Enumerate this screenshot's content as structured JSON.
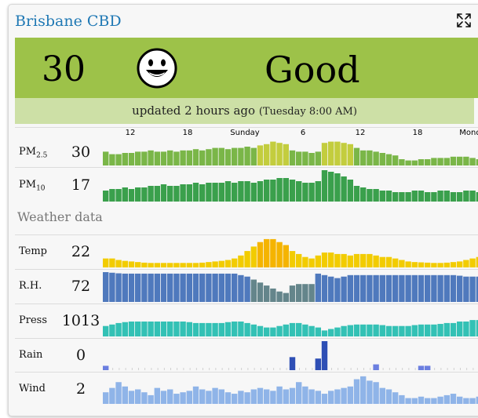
{
  "station": {
    "name": "Brisbane CBD"
  },
  "aqi": {
    "value": "30",
    "label": "Good",
    "updated_text": "updated 2 hours ago",
    "updated_detail": "(Tuesday 8:00 AM)",
    "banner_color": "#9dc249",
    "updated_bg": "#cde0a6"
  },
  "timeline": {
    "ticks": [
      "12",
      "18",
      "Sunday",
      "6",
      "12",
      "18",
      "Monday"
    ]
  },
  "section_label": "Weather data",
  "metrics": [
    {
      "key": "pm25",
      "label_main": "PM",
      "label_sub": "2.5",
      "value": "30",
      "color": "#7ab648",
      "levels": [
        0.55,
        0.45,
        0.45,
        0.5,
        0.5,
        0.55,
        0.55,
        0.6,
        0.55,
        0.55,
        0.6,
        0.55,
        0.6,
        0.6,
        0.65,
        0.6,
        0.65,
        0.7,
        0.7,
        0.65,
        0.7,
        0.7,
        0.75,
        0.7,
        0.8,
        0.85,
        0.95,
        0.9,
        0.85,
        0.6,
        0.55,
        0.55,
        0.5,
        0.55,
        0.9,
        0.95,
        0.95,
        0.9,
        0.85,
        0.7,
        0.6,
        0.6,
        0.55,
        0.5,
        0.45,
        0.4,
        0.25,
        0.2,
        0.2,
        0.25,
        0.25,
        0.3,
        0.3,
        0.3,
        0.35,
        0.35,
        0.35,
        0.3,
        0.25,
        0.2,
        0.25,
        0.3
      ]
    },
    {
      "key": "pm10",
      "label_main": "PM",
      "label_sub": "10",
      "value": "17",
      "color": "#3aa04c",
      "levels": [
        0.35,
        0.4,
        0.4,
        0.45,
        0.4,
        0.45,
        0.45,
        0.5,
        0.5,
        0.55,
        0.5,
        0.5,
        0.55,
        0.55,
        0.6,
        0.55,
        0.6,
        0.6,
        0.6,
        0.65,
        0.6,
        0.65,
        0.65,
        0.6,
        0.65,
        0.7,
        0.7,
        0.75,
        0.75,
        0.7,
        0.65,
        0.6,
        0.6,
        0.65,
        1.0,
        0.95,
        0.9,
        0.8,
        0.7,
        0.5,
        0.45,
        0.4,
        0.4,
        0.35,
        0.35,
        0.3,
        0.3,
        0.3,
        0.35,
        0.35,
        0.3,
        0.3,
        0.35,
        0.35,
        0.3,
        0.3,
        0.35,
        0.35,
        0.3,
        0.3,
        0.3,
        0.35
      ]
    },
    {
      "key": "temp",
      "label_main": "Temp",
      "label_sub": "",
      "value": "22",
      "color": "#f2cc00",
      "levels": [
        0.3,
        0.3,
        0.25,
        0.22,
        0.2,
        0.18,
        0.16,
        0.15,
        0.15,
        0.15,
        0.15,
        0.15,
        0.15,
        0.15,
        0.15,
        0.16,
        0.18,
        0.2,
        0.22,
        0.25,
        0.3,
        0.4,
        0.55,
        0.7,
        0.85,
        0.95,
        0.95,
        0.85,
        0.75,
        0.55,
        0.45,
        0.35,
        0.3,
        0.4,
        0.5,
        0.5,
        0.45,
        0.45,
        0.4,
        0.45,
        0.45,
        0.45,
        0.4,
        0.35,
        0.35,
        0.3,
        0.25,
        0.2,
        0.18,
        0.17,
        0.16,
        0.15,
        0.15,
        0.16,
        0.18,
        0.2,
        0.25,
        0.3,
        0.35,
        0.4,
        0.45,
        0.5
      ]
    },
    {
      "key": "rh",
      "label_main": "R.H.",
      "label_sub": "",
      "value": "72",
      "color": "#4f79bd",
      "levels": [
        1.0,
        0.98,
        0.96,
        0.95,
        0.95,
        0.95,
        0.95,
        0.95,
        0.95,
        0.95,
        0.95,
        0.95,
        0.95,
        0.95,
        0.95,
        0.95,
        0.95,
        0.95,
        0.95,
        0.95,
        0.95,
        0.9,
        0.85,
        0.75,
        0.65,
        0.55,
        0.45,
        0.35,
        0.3,
        0.55,
        0.6,
        0.6,
        0.6,
        0.95,
        0.9,
        0.85,
        0.8,
        0.85,
        0.9,
        0.9,
        0.9,
        0.9,
        0.9,
        0.9,
        0.9,
        0.9,
        0.9,
        0.9,
        0.9,
        0.9,
        0.9,
        0.9,
        0.9,
        0.9,
        0.9,
        0.88,
        0.85,
        0.85,
        0.85,
        0.9,
        0.9,
        0.9
      ]
    },
    {
      "key": "press",
      "label_main": "Press",
      "label_sub": "",
      "value": "1013",
      "color": "#33c1b5",
      "levels": [
        0.35,
        0.4,
        0.45,
        0.48,
        0.5,
        0.5,
        0.5,
        0.5,
        0.5,
        0.5,
        0.5,
        0.5,
        0.5,
        0.48,
        0.45,
        0.45,
        0.45,
        0.45,
        0.45,
        0.48,
        0.5,
        0.5,
        0.45,
        0.4,
        0.35,
        0.3,
        0.3,
        0.35,
        0.4,
        0.45,
        0.45,
        0.4,
        0.35,
        0.3,
        0.2,
        0.25,
        0.3,
        0.35,
        0.38,
        0.4,
        0.4,
        0.4,
        0.4,
        0.38,
        0.35,
        0.35,
        0.35,
        0.35,
        0.38,
        0.4,
        0.4,
        0.4,
        0.42,
        0.45,
        0.45,
        0.5,
        0.5,
        0.55,
        0.55,
        0.6,
        0.6,
        0.6
      ]
    },
    {
      "key": "rain",
      "label_main": "Rain",
      "label_sub": "",
      "value": "0",
      "color": "#2e4fb5",
      "levels": [
        0.15,
        0,
        0,
        0,
        0,
        0,
        0,
        0,
        0,
        0,
        0,
        0,
        0,
        0,
        0,
        0,
        0,
        0,
        0,
        0,
        0,
        0,
        0,
        0,
        0,
        0,
        0,
        0,
        0,
        0.45,
        0,
        0,
        0,
        0.4,
        1.0,
        0,
        0,
        0,
        0,
        0,
        0,
        0,
        0.2,
        0,
        0,
        0,
        0,
        0,
        0,
        0.15,
        0.15,
        0,
        0,
        0,
        0,
        0,
        0,
        0,
        0,
        0,
        0,
        0
      ]
    },
    {
      "key": "wind",
      "label_main": "Wind",
      "label_sub": "",
      "value": "2",
      "color": "#8fb4e8",
      "levels": [
        0.4,
        0.55,
        0.75,
        0.6,
        0.45,
        0.5,
        0.4,
        0.3,
        0.55,
        0.45,
        0.5,
        0.35,
        0.4,
        0.45,
        0.6,
        0.5,
        0.45,
        0.55,
        0.5,
        0.4,
        0.35,
        0.45,
        0.4,
        0.5,
        0.55,
        0.5,
        0.45,
        0.6,
        0.5,
        0.55,
        0.75,
        0.6,
        0.5,
        0.45,
        0.35,
        0.45,
        0.5,
        0.55,
        0.6,
        0.85,
        0.95,
        0.8,
        0.75,
        0.55,
        0.5,
        0.4,
        0.3,
        0.2,
        0.2,
        0.25,
        0.2,
        0.2,
        0.25,
        0.3,
        0.35,
        0.25,
        0.2,
        0.2,
        0.25,
        0.25,
        0.3,
        0.25
      ]
    }
  ]
}
